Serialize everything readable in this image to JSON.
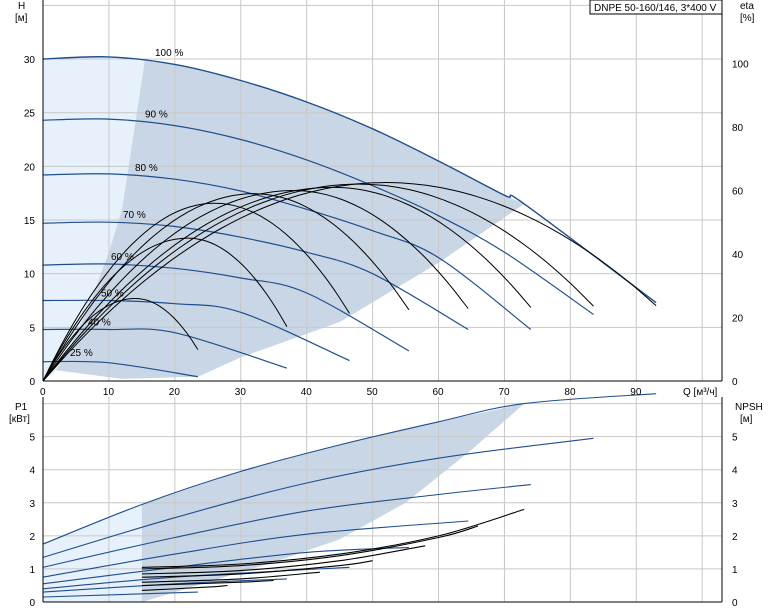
{
  "chart_data": [
    {
      "type": "line",
      "title": "DNPE 50-160/146, 3*400 V",
      "xlabel": "Q [м³/ч]",
      "ylabel": "H [м]",
      "y2label": "eta [%]",
      "xlim": [
        0,
        103
      ],
      "ylim": [
        0,
        35.5
      ],
      "y2lim": [
        0,
        120
      ],
      "xticks": [
        "0",
        "10",
        "20",
        "30",
        "40",
        "50",
        "60",
        "70",
        "80",
        "90"
      ],
      "yticks": [
        "0",
        "5",
        "10",
        "15",
        "20",
        "25",
        "30"
      ],
      "y2ticks": [
        "0",
        "20",
        "40",
        "60",
        "80",
        "100"
      ],
      "grid": true,
      "speed_curves": [
        {
          "name": "100 %",
          "x": [
            0,
            10,
            20,
            30,
            40,
            50,
            60,
            70,
            73,
            93
          ],
          "y": [
            30,
            30.2,
            29.5,
            28,
            26,
            23.5,
            20.5,
            17.3,
            16.5,
            7.3
          ]
        },
        {
          "name": "90 %",
          "x": [
            0,
            10,
            20,
            30,
            40,
            50,
            60,
            70,
            83.5
          ],
          "y": [
            24.3,
            24.4,
            23.8,
            22.5,
            20.6,
            18.2,
            15.4,
            12,
            6.2
          ]
        },
        {
          "name": "80 %",
          "x": [
            0,
            10,
            20,
            30,
            40,
            50,
            60,
            74
          ],
          "y": [
            19.2,
            19.3,
            18.8,
            17.7,
            16,
            14,
            11.5,
            4.8
          ]
        },
        {
          "name": "70 %",
          "x": [
            0,
            10,
            20,
            30,
            40,
            50,
            64.5
          ],
          "y": [
            14.7,
            14.8,
            14.4,
            13.4,
            12,
            10,
            4.8
          ]
        },
        {
          "name": "60 %",
          "x": [
            0,
            10,
            20,
            30,
            40,
            55.5
          ],
          "y": [
            10.8,
            10.9,
            10.5,
            9.6,
            8.2,
            2.8
          ]
        },
        {
          "name": "50 %",
          "x": [
            0,
            10,
            20,
            30,
            46.5
          ],
          "y": [
            7.5,
            7.5,
            7.2,
            6.4,
            1.9
          ]
        },
        {
          "name": "40 %",
          "x": [
            0,
            10,
            20,
            37
          ],
          "y": [
            4.8,
            4.8,
            4.5,
            1.2
          ]
        },
        {
          "name": "25 %",
          "x": [
            0,
            10,
            23.5
          ],
          "y": [
            1.8,
            1.7,
            0.4
          ]
        }
      ],
      "eta_curves": [
        {
          "max_x": 14,
          "max_eta": 26,
          "end_x": 23.5
        },
        {
          "max_x": 22,
          "max_eta": 45,
          "end_x": 37
        },
        {
          "max_x": 26,
          "max_eta": 56,
          "end_x": 46.5
        },
        {
          "max_x": 32,
          "max_eta": 59,
          "end_x": 55.5
        },
        {
          "max_x": 38,
          "max_eta": 60,
          "end_x": 64.5
        },
        {
          "max_x": 44,
          "max_eta": 61,
          "end_x": 74
        },
        {
          "max_x": 48,
          "max_eta": 62,
          "end_x": 83.5
        },
        {
          "max_x": 52,
          "max_eta": 62.5,
          "end_x": 93
        }
      ]
    },
    {
      "type": "line",
      "xlabel": "",
      "ylabel": "P1 [кВт]",
      "y2label": "NPSH [м]",
      "xlim": [
        0,
        103
      ],
      "ylim": [
        0,
        6.2
      ],
      "y2lim": [
        0,
        6.2
      ],
      "yticks": [
        "0",
        "1",
        "2",
        "3",
        "4",
        "5"
      ],
      "y2ticks": [
        "0",
        "1",
        "2",
        "3",
        "4",
        "5"
      ],
      "grid": true,
      "power_curves": [
        {
          "x": [
            0,
            15,
            30,
            45,
            60,
            73,
            93
          ],
          "y": [
            1.75,
            2.95,
            3.95,
            4.75,
            5.45,
            6.0,
            6.3
          ]
        },
        {
          "x": [
            0,
            20,
            40,
            60,
            83.5
          ],
          "y": [
            1.35,
            2.55,
            3.6,
            4.35,
            4.95
          ]
        },
        {
          "x": [
            0,
            20,
            40,
            60,
            74
          ],
          "y": [
            1.05,
            1.95,
            2.75,
            3.25,
            3.55
          ]
        },
        {
          "x": [
            0,
            20,
            40,
            64.5
          ],
          "y": [
            0.75,
            1.45,
            2.05,
            2.45
          ]
        },
        {
          "x": [
            0,
            20,
            40,
            55.5
          ],
          "y": [
            0.55,
            1.05,
            1.5,
            1.65
          ]
        },
        {
          "x": [
            0,
            20,
            46.5
          ],
          "y": [
            0.4,
            0.75,
            1.05
          ]
        },
        {
          "x": [
            0,
            20,
            37
          ],
          "y": [
            0.3,
            0.55,
            0.7
          ]
        },
        {
          "x": [
            0,
            23.5
          ],
          "y": [
            0.15,
            0.3
          ]
        }
      ],
      "npsh_curves": [
        {
          "x": [
            15,
            30,
            45,
            60,
            73
          ],
          "y": [
            1.05,
            1.15,
            1.45,
            2.0,
            2.8
          ]
        },
        {
          "x": [
            15,
            30,
            45,
            60,
            66
          ],
          "y": [
            1.0,
            1.1,
            1.4,
            1.95,
            2.3
          ]
        },
        {
          "x": [
            15,
            30,
            45,
            58
          ],
          "y": [
            0.85,
            0.95,
            1.25,
            1.7
          ]
        },
        {
          "x": [
            15,
            30,
            45,
            50
          ],
          "y": [
            0.75,
            0.85,
            1.1,
            1.25
          ]
        },
        {
          "x": [
            15,
            30,
            42
          ],
          "y": [
            0.6,
            0.7,
            0.9
          ]
        },
        {
          "x": [
            15,
            30,
            35
          ],
          "y": [
            0.5,
            0.6,
            0.65
          ]
        },
        {
          "x": [
            15,
            25,
            28
          ],
          "y": [
            0.35,
            0.45,
            0.5
          ]
        }
      ]
    }
  ],
  "labels": {
    "title": "DNPE 50-160/146, 3*400 V",
    "h": "H",
    "h_unit": "[м]",
    "eta": "eta",
    "eta_unit": "[%]",
    "q": "Q [м³/ч]",
    "p1": "P1",
    "p1_unit": "[кВт]",
    "npsh": "NPSH",
    "npsh_unit": "[м]"
  },
  "colors": {
    "curve": "#1f4e8c",
    "region": "#c9d6e5",
    "region_light": "#e6f1fb",
    "grid": "#c8c8c8",
    "eta": "#000000"
  }
}
